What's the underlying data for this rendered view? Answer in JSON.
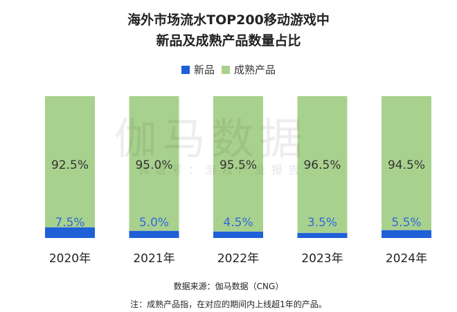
{
  "header": {
    "title_line1": "海外市场流水TOP200移动游戏中",
    "title_line2": "新品及成熟产品数量占比"
  },
  "legend": {
    "new_label": "新品",
    "mature_label": "成熟产品"
  },
  "watermark": {
    "main": "伽马数据",
    "sub": "微信号：游戏产业报告"
  },
  "footer": {
    "source": "数据来源：伽马数据（CNG）",
    "note": "注：成熟产品指，在对应的期间内上线超1年的产品。"
  },
  "colors": {
    "new": "#1f5fd8",
    "mature": "#a9d18e",
    "new_label_text": "#2f6ad8",
    "mature_label_text": "#333333"
  },
  "chart_data": {
    "type": "bar",
    "stacked": true,
    "categories": [
      "2020年",
      "2021年",
      "2022年",
      "2023年",
      "2024年"
    ],
    "series": [
      {
        "name": "新品",
        "values": [
          7.5,
          5.0,
          4.5,
          3.5,
          5.5
        ],
        "labels": [
          "7.5%",
          "5.0%",
          "4.5%",
          "3.5%",
          "5.5%"
        ]
      },
      {
        "name": "成熟产品",
        "values": [
          92.5,
          95.0,
          95.5,
          96.5,
          94.5
        ],
        "labels": [
          "92.5%",
          "95.0%",
          "95.5%",
          "96.5%",
          "94.5%"
        ]
      }
    ],
    "ylim": [
      0,
      100
    ],
    "legend_position": "top",
    "grid": false
  }
}
